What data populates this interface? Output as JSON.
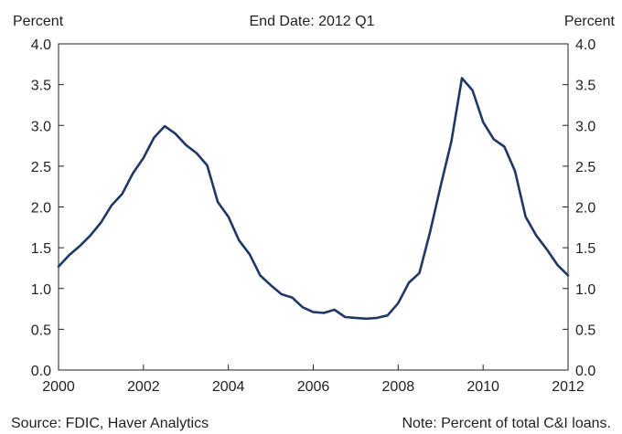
{
  "chart_data": {
    "type": "line",
    "title": "End Date: 2012 Q1",
    "ylabel_left": "Percent",
    "ylabel_right": "Percent",
    "xlabel": "",
    "xlim": [
      2000,
      2012
    ],
    "ylim": [
      0,
      4
    ],
    "x_ticks": [
      "2000",
      "2002",
      "2004",
      "2006",
      "2008",
      "2010",
      "2012"
    ],
    "y_ticks": [
      "0.0",
      "0.5",
      "1.0",
      "1.5",
      "2.0",
      "2.5",
      "3.0",
      "3.5",
      "4.0"
    ],
    "grid": false,
    "line_color": "#1f3864",
    "series": [
      {
        "x": [
          2000.0,
          2000.25,
          2000.5,
          2000.75,
          2001.0,
          2001.25,
          2001.5,
          2001.75,
          2002.0,
          2002.25,
          2002.5,
          2002.75,
          2003.0,
          2003.25,
          2003.5,
          2003.75,
          2004.0,
          2004.25,
          2004.5,
          2004.75,
          2005.0,
          2005.25,
          2005.5,
          2005.75,
          2006.0,
          2006.25,
          2006.5,
          2006.75,
          2007.0,
          2007.25,
          2007.5,
          2007.75,
          2008.0,
          2008.25,
          2008.5,
          2008.75,
          2009.0,
          2009.25,
          2009.5,
          2009.75,
          2010.0,
          2010.25,
          2010.5,
          2010.75,
          2011.0,
          2011.25,
          2011.5,
          2011.75,
          2012.0
        ],
        "y": [
          1.27,
          1.41,
          1.52,
          1.65,
          1.81,
          2.02,
          2.16,
          2.41,
          2.6,
          2.85,
          2.99,
          2.9,
          2.76,
          2.66,
          2.51,
          2.06,
          1.88,
          1.59,
          1.42,
          1.16,
          1.04,
          0.93,
          0.89,
          0.77,
          0.71,
          0.7,
          0.74,
          0.65,
          0.64,
          0.63,
          0.64,
          0.67,
          0.82,
          1.07,
          1.19,
          1.69,
          2.26,
          2.8,
          3.58,
          3.43,
          3.04,
          2.83,
          2.74,
          2.44,
          1.88,
          1.65,
          1.48,
          1.29,
          1.16
        ]
      }
    ]
  },
  "footer": {
    "source": "Source: FDIC, Haver Analytics",
    "note": "Note: Percent of total C&I loans."
  }
}
